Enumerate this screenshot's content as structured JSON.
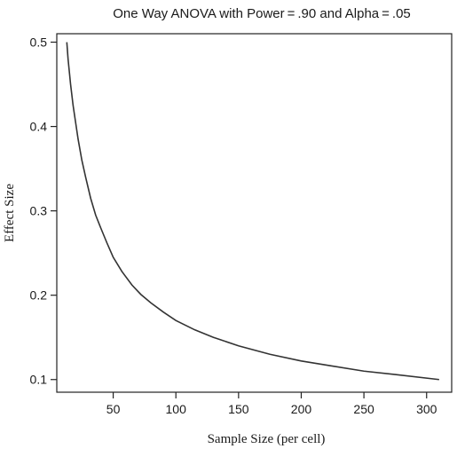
{
  "chart_data": {
    "type": "line",
    "title": "One Way ANOVA with Power = .90 and Alpha = .05",
    "xlabel": "Sample Size (per cell)",
    "ylabel": "Effect Size",
    "xlim": [
      5,
      320
    ],
    "ylim": [
      0.085,
      0.51
    ],
    "x_ticks": [
      50,
      100,
      150,
      200,
      250,
      300
    ],
    "y_ticks": [
      0.1,
      0.2,
      0.3,
      0.4,
      0.5
    ],
    "x_tick_labels": [
      "50",
      "100",
      "150",
      "200",
      "250",
      "300"
    ],
    "y_tick_labels": [
      "0.1",
      "0.2",
      "0.3",
      "0.4",
      "0.5"
    ],
    "grid": false,
    "series": [
      {
        "x": [
          13,
          14,
          15,
          16,
          18,
          20,
          22,
          25,
          28,
          32,
          36,
          40,
          45,
          50,
          57,
          65,
          72,
          80,
          90,
          100,
          115,
          130,
          150,
          175,
          200,
          225,
          250,
          275,
          310
        ],
        "y": [
          0.5,
          0.48,
          0.465,
          0.45,
          0.425,
          0.405,
          0.385,
          0.36,
          0.34,
          0.315,
          0.295,
          0.28,
          0.262,
          0.245,
          0.228,
          0.212,
          0.201,
          0.191,
          0.18,
          0.17,
          0.159,
          0.15,
          0.14,
          0.13,
          0.122,
          0.116,
          0.11,
          0.106,
          0.1
        ]
      }
    ]
  }
}
